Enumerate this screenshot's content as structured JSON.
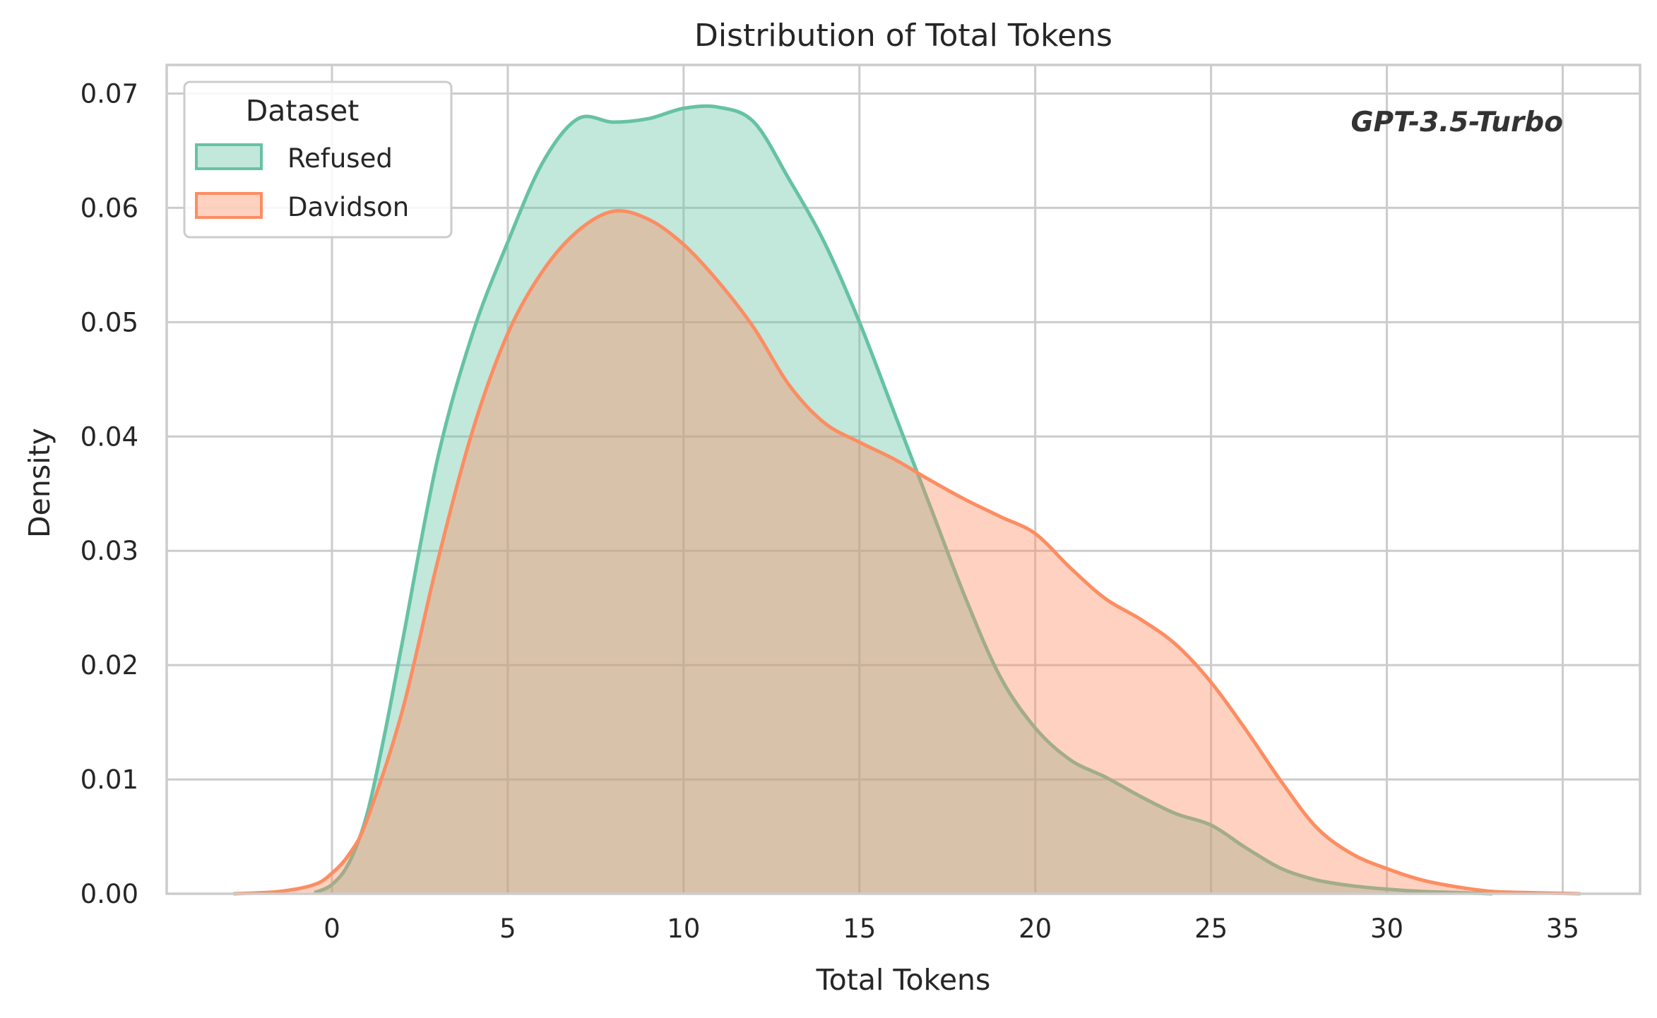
{
  "chart_data": {
    "type": "area",
    "title": "Distribution of Total Tokens",
    "xlabel": "Total Tokens",
    "ylabel": "Density",
    "xlim": [
      -4.7,
      37.2
    ],
    "ylim": [
      0,
      0.0725
    ],
    "xticks": [
      0,
      5,
      10,
      15,
      20,
      25,
      30,
      35
    ],
    "yticks": [
      0.0,
      0.01,
      0.02,
      0.03,
      0.04,
      0.05,
      0.06,
      0.07
    ],
    "ytick_labels": [
      "0.00",
      "0.01",
      "0.02",
      "0.03",
      "0.04",
      "0.05",
      "0.06",
      "0.07"
    ],
    "grid": true,
    "legend": {
      "title": "Dataset",
      "position": "top-left"
    },
    "annotation": "GPT-3.5-Turbo",
    "series": [
      {
        "name": "Refused",
        "color": "#66c2a5",
        "x": [
          -0.5,
          0,
          0.5,
          1,
          1.5,
          2,
          3,
          4,
          5,
          6,
          7,
          8,
          9,
          10,
          11,
          12,
          13,
          14,
          15,
          16,
          17,
          18,
          19,
          20,
          21,
          22,
          23,
          24,
          25,
          26,
          27,
          28,
          29,
          30,
          31,
          32,
          33
        ],
        "y": [
          0.0001,
          0.0008,
          0.0028,
          0.007,
          0.014,
          0.022,
          0.038,
          0.049,
          0.057,
          0.064,
          0.0678,
          0.0675,
          0.0678,
          0.0687,
          0.0688,
          0.0675,
          0.0625,
          0.057,
          0.05,
          0.042,
          0.034,
          0.026,
          0.019,
          0.0145,
          0.0117,
          0.0102,
          0.0085,
          0.007,
          0.006,
          0.004,
          0.0022,
          0.0012,
          0.0007,
          0.0004,
          0.0002,
          0.0001,
          0.0
        ]
      },
      {
        "name": "Davidson",
        "color": "#fc8d62",
        "x": [
          -2.8,
          -1.5,
          -0.5,
          0,
          0.5,
          1,
          2,
          3,
          4,
          5,
          6,
          7,
          8,
          9,
          10,
          11,
          12,
          13,
          14,
          15,
          16,
          17,
          18,
          19,
          20,
          21,
          22,
          23,
          24,
          25,
          26,
          27,
          28,
          29,
          30,
          31,
          32,
          33,
          34,
          35.5
        ],
        "y": [
          0.0,
          0.0002,
          0.0008,
          0.0018,
          0.0035,
          0.0065,
          0.016,
          0.029,
          0.0405,
          0.049,
          0.0545,
          0.058,
          0.0597,
          0.059,
          0.0568,
          0.0535,
          0.0495,
          0.0445,
          0.0412,
          0.0395,
          0.038,
          0.0362,
          0.0345,
          0.033,
          0.0315,
          0.0285,
          0.0258,
          0.024,
          0.0218,
          0.0185,
          0.0143,
          0.0098,
          0.0058,
          0.0035,
          0.0022,
          0.0012,
          0.0006,
          0.0002,
          0.0001,
          0.0
        ]
      }
    ]
  }
}
